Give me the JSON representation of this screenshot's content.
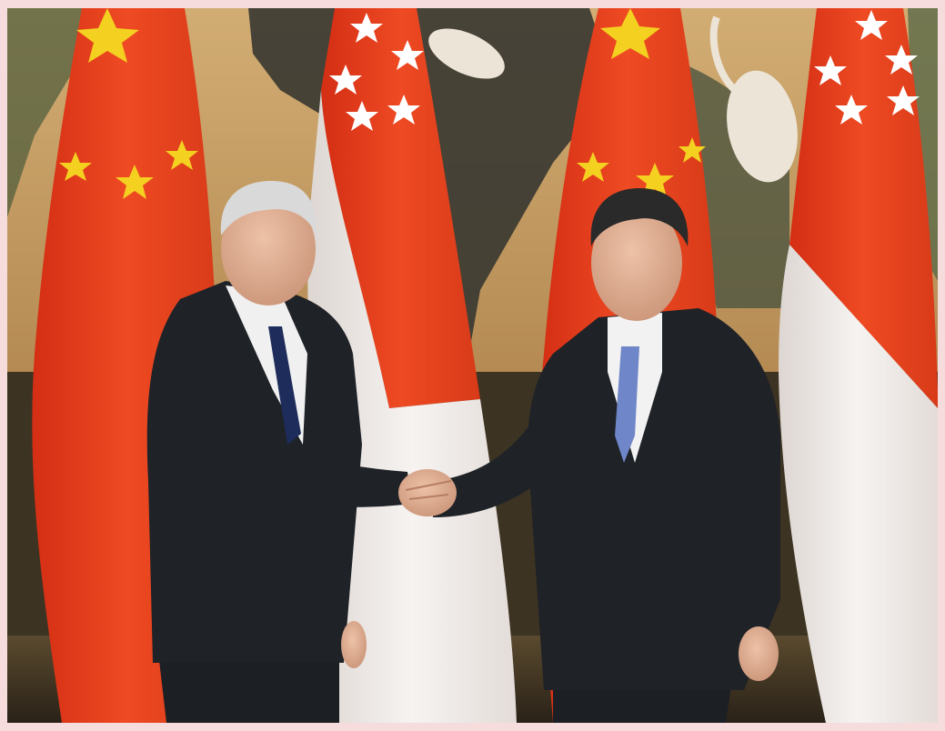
{
  "image": {
    "subject": "handshake",
    "palette": {
      "border": "#f6dcdc",
      "wall": "#caa46a",
      "mural_dark": "#3c3b33",
      "china_red": "#e8401f",
      "china_star": "#f4d021",
      "singapore_red": "#e33a25",
      "singapore_white": "#f3f0ee",
      "suit": "#1f2227",
      "shirt": "#f2f2f2",
      "skin": "#e2b49a",
      "tie_left": "#1d2c5a",
      "tie_right": "#6f86c8"
    }
  }
}
